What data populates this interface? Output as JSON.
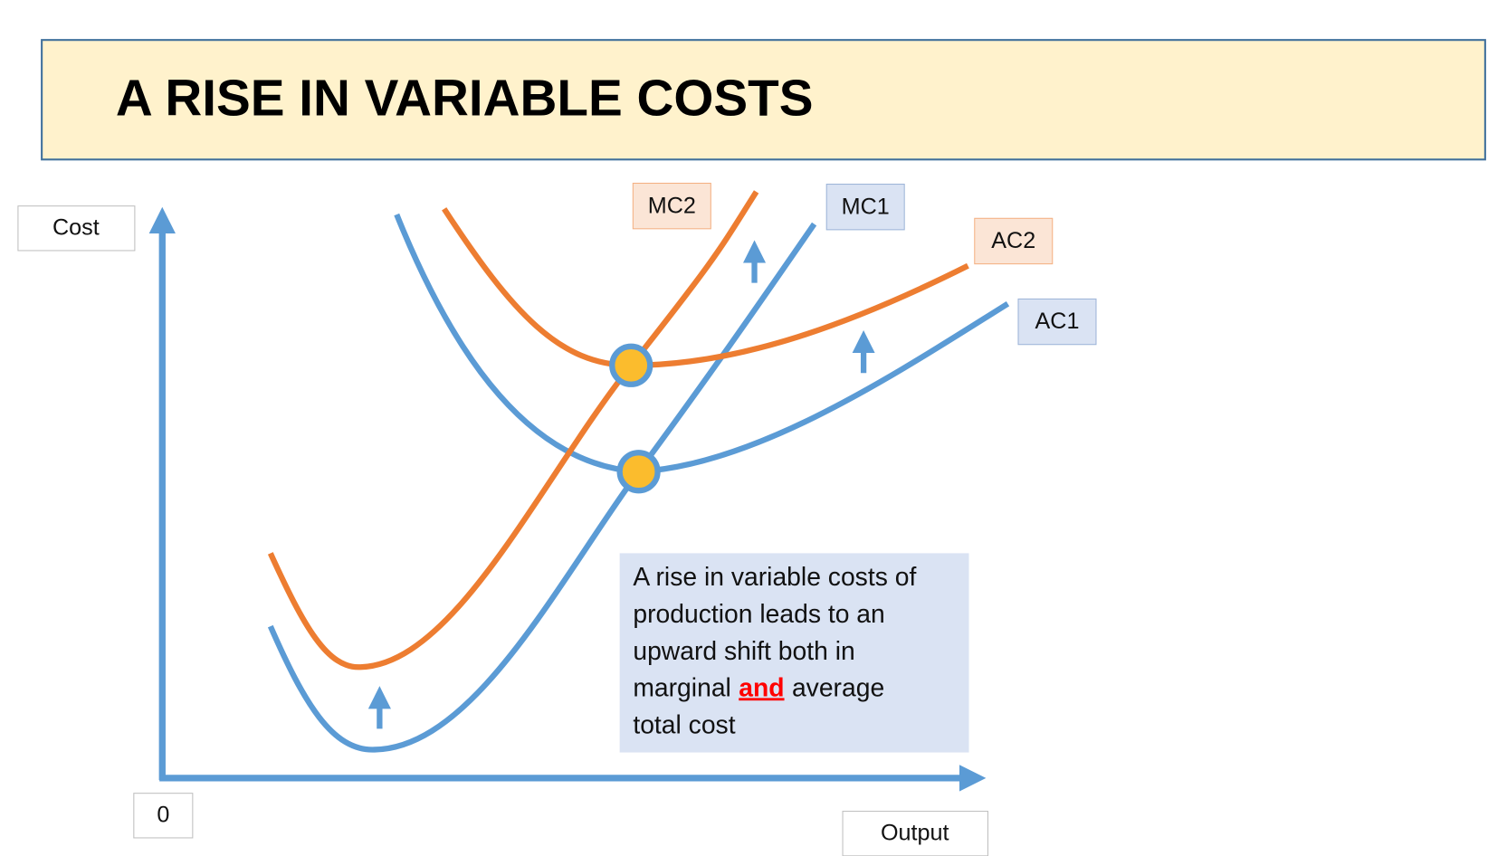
{
  "header": {
    "title": "A RISE IN VARIABLE COSTS"
  },
  "axes": {
    "y_label": "Cost",
    "origin": "0",
    "x_label": "Output"
  },
  "curves": [
    {
      "label": "MC2"
    },
    {
      "label": "MC1"
    },
    {
      "label": "AC2"
    },
    {
      "label": "AC1"
    }
  ],
  "annotation": {
    "lines": [
      "A rise in variable costs of",
      "production leads to an",
      "upward shift both in"
    ],
    "emphasis_line": [
      "marginal",
      "and",
      "average"
    ],
    "last_line": "total cost"
  }
}
